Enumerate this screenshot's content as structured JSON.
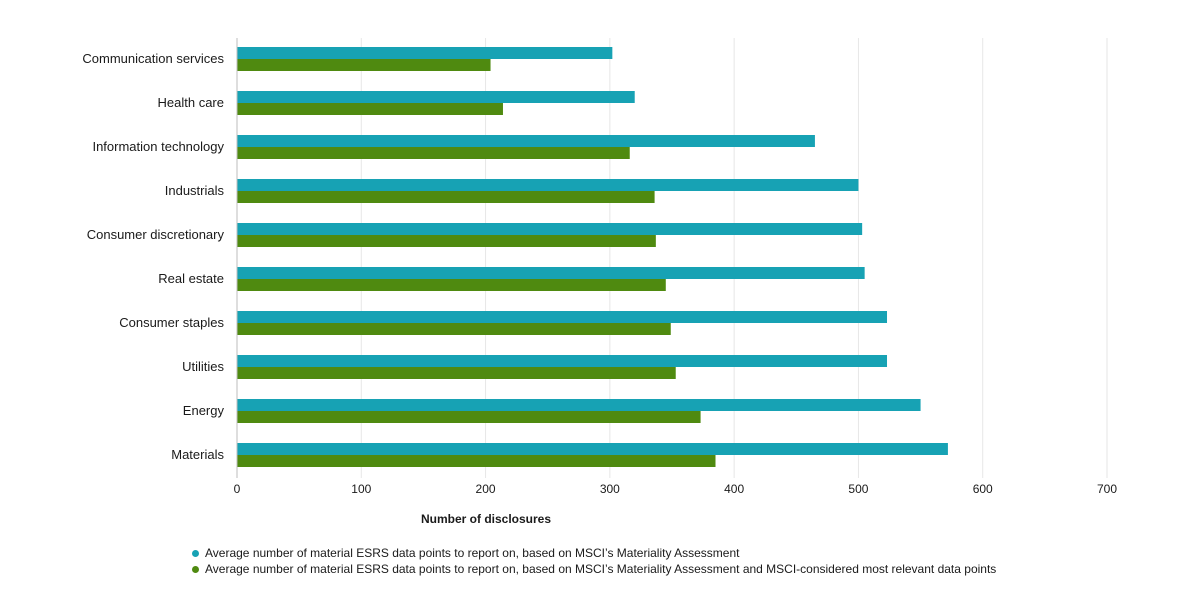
{
  "chart_data": {
    "type": "bar",
    "orientation": "horizontal",
    "categories": [
      "Communication services",
      "Health care",
      "Information technology",
      "Industrials",
      "Consumer discretionary",
      "Real estate",
      "Consumer staples",
      "Utilities",
      "Energy",
      "Materials"
    ],
    "series": [
      {
        "name": "Average number of material ESRS data points to report on, based on MSCI’s Materiality Assessment",
        "color": "#17a2b4",
        "values": [
          302,
          320,
          465,
          500,
          503,
          505,
          523,
          523,
          550,
          572
        ]
      },
      {
        "name": "Average number of material ESRS data points to report on, based on MSCI’s Materiality Assessment and MSCI-considered most relevant data points",
        "color": "#4f8a10",
        "values": [
          204,
          214,
          316,
          336,
          337,
          345,
          349,
          353,
          373,
          385
        ]
      }
    ],
    "xlabel": "Number of disclosures",
    "ylabel": "",
    "xlim": [
      0,
      700
    ],
    "xticks": [
      0,
      100,
      200,
      300,
      400,
      500,
      600,
      700
    ],
    "grid": true,
    "legend_position": "bottom"
  }
}
